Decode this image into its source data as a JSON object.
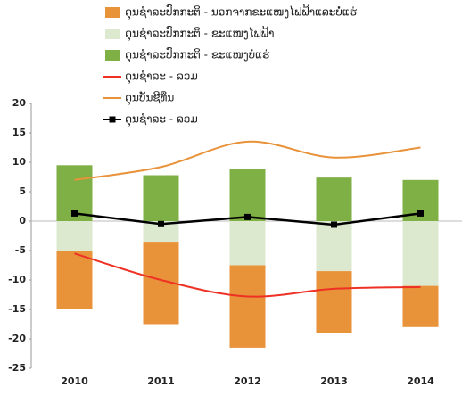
{
  "chart_data": {
    "type": "bar",
    "categories": [
      "2010",
      "2011",
      "2012",
      "2013",
      "2014"
    ],
    "series": [
      {
        "name": "ດຸນຊໍາລະປົກກະຕິ - ນອກຈາກຂະແໜງໄຟຟ້າແລະບໍ່ແຮ່",
        "kind": "bar",
        "color": "#e8923a",
        "values": [
          -10,
          -14,
          -14,
          -10.5,
          -7
        ]
      },
      {
        "name": "ດຸນຊໍາລະປົກກະຕິ - ຂະແໜງໄຟຟ້າ",
        "kind": "bar",
        "color": "#dde9cf",
        "values": [
          -5,
          -3.5,
          -7.5,
          -8.5,
          -11
        ]
      },
      {
        "name": "ດຸນຊໍາລະປົກກະຕິ - ຂະແໜງບໍ່ແຮ່",
        "kind": "bar",
        "color": "#7fb045",
        "values": [
          9.5,
          7.8,
          8.9,
          7.4,
          7
        ]
      },
      {
        "name": "ດຸນຊໍາລະ - ລວມ",
        "kind": "smooth",
        "color": "#ee3124",
        "values": [
          -5.5,
          -10,
          -12.8,
          -11.5,
          -11.2
        ]
      },
      {
        "name": "ດຸນບັນຊີທຶນ",
        "kind": "smooth",
        "color": "#e8923a",
        "values": [
          7,
          9.2,
          13.5,
          10.8,
          12.5
        ]
      },
      {
        "name": "ດຸນຊໍາລະ - ລວມ",
        "kind": "marker",
        "color": "#000000",
        "values": [
          1.3,
          -0.5,
          0.7,
          -0.6,
          1.3
        ]
      }
    ],
    "ylim": [
      -25,
      20
    ],
    "yticks": [
      -25,
      -20,
      -15,
      -10,
      -5,
      0,
      5,
      10,
      15,
      20
    ]
  }
}
